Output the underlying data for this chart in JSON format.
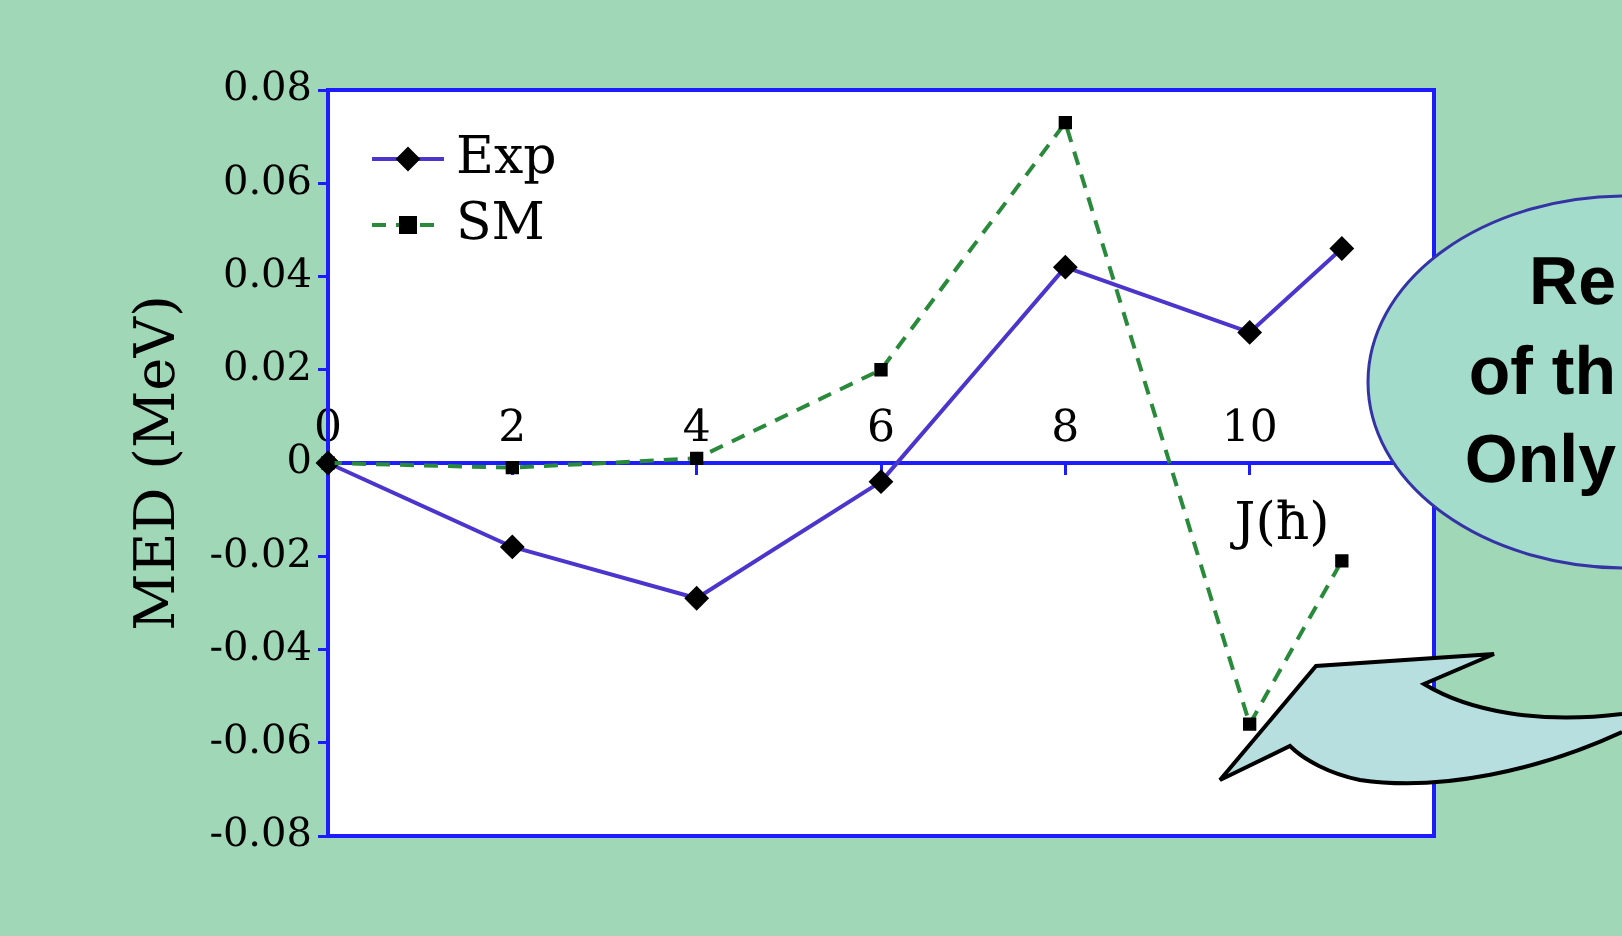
{
  "chart_data": {
    "type": "line",
    "xlabel": "J(ħ)",
    "ylabel": "MED (MeV)",
    "x": [
      0,
      2,
      4,
      6,
      8,
      10,
      11
    ],
    "series": [
      {
        "name": "Exp",
        "color": "#4b35cc",
        "marker": "diamond",
        "line_style": "solid",
        "values": [
          0,
          -0.018,
          -0.029,
          -0.004,
          0.042,
          0.028,
          0.046
        ]
      },
      {
        "name": "SM",
        "color": "#2a8a3c",
        "marker": "square",
        "line_style": "dashed",
        "values": [
          0,
          -0.001,
          0.001,
          0.02,
          0.073,
          -0.056,
          -0.021
        ]
      }
    ],
    "xlim": [
      0,
      12
    ],
    "xticks": [
      0,
      2,
      4,
      6,
      8,
      10
    ],
    "ylim": [
      -0.08,
      0.08
    ],
    "yticks": [
      -0.08,
      -0.06,
      -0.04,
      -0.02,
      0,
      0.02,
      0.04,
      0.06,
      0.08
    ],
    "legend": "top left",
    "annotations": [
      "Re",
      "of th",
      "Only"
    ]
  }
}
